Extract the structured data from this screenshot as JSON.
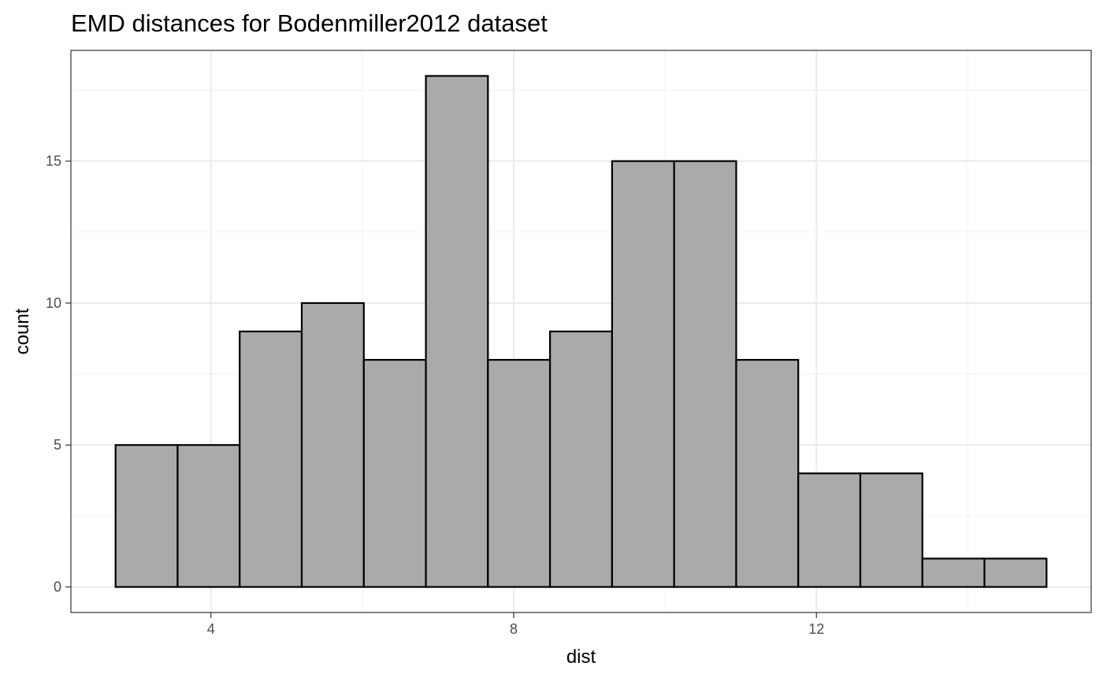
{
  "chart_data": {
    "type": "bar",
    "title": "EMD distances for Bodenmiller2012 dataset",
    "xlabel": "dist",
    "ylabel": "count",
    "bins": [
      {
        "x0": 2.74,
        "x1": 3.56,
        "count": 5
      },
      {
        "x0": 3.56,
        "x1": 4.38,
        "count": 5
      },
      {
        "x0": 4.38,
        "x1": 5.2,
        "count": 9
      },
      {
        "x0": 5.2,
        "x1": 6.02,
        "count": 10
      },
      {
        "x0": 6.02,
        "x1": 6.84,
        "count": 8
      },
      {
        "x0": 6.84,
        "x1": 7.66,
        "count": 18
      },
      {
        "x0": 7.66,
        "x1": 8.48,
        "count": 8
      },
      {
        "x0": 8.48,
        "x1": 9.3,
        "count": 9
      },
      {
        "x0": 9.3,
        "x1": 10.12,
        "count": 15
      },
      {
        "x0": 10.12,
        "x1": 10.94,
        "count": 15
      },
      {
        "x0": 10.94,
        "x1": 11.76,
        "count": 8
      },
      {
        "x0": 11.76,
        "x1": 12.58,
        "count": 4
      },
      {
        "x0": 12.58,
        "x1": 13.4,
        "count": 4
      },
      {
        "x0": 13.4,
        "x1": 14.22,
        "count": 1
      },
      {
        "x0": 14.22,
        "x1": 15.04,
        "count": 1
      }
    ],
    "xlim": [
      2.15,
      15.63
    ],
    "ylim": [
      -0.9,
      18.9
    ],
    "xticks": [
      4,
      8,
      12
    ],
    "yticks": [
      0,
      5,
      10,
      15
    ],
    "xminor": [
      6,
      10,
      14
    ],
    "yminor": [
      2.5,
      7.5,
      12.5,
      17.5
    ],
    "grid": true,
    "legend": "none",
    "colors": {
      "bar_fill": "#aaaaaa",
      "bar_stroke": "#000000",
      "grid_major": "#ebebeb",
      "grid_minor": "#f2f2f2",
      "tick_text": "#4d4d4d"
    }
  }
}
